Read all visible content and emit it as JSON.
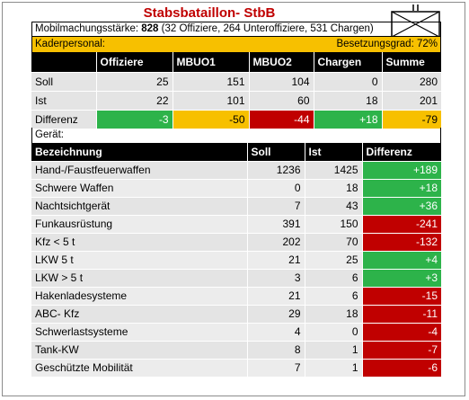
{
  "title": "Stabsbataillon- StbB",
  "symbol": {
    "icon": "military-unit-symbol-icon",
    "marks": "II"
  },
  "mobilmachung": {
    "label": "Mobilmachungsstärke:",
    "total": "828",
    "detail": "(32 Offiziere, 264 Unteroffiziere, 531 Chargen)"
  },
  "kader": {
    "label": "Kaderpersonal:",
    "besetzung_label": "Besetzungsgrad: 72%"
  },
  "personal": {
    "headers": [
      "",
      "Offiziere",
      "MBUO1",
      "MBUO2",
      "Chargen",
      "Summe"
    ],
    "rows": [
      {
        "label": "Soll",
        "values": [
          "25",
          "151",
          "104",
          "0",
          "280"
        ]
      },
      {
        "label": "Ist",
        "values": [
          "22",
          "101",
          "60",
          "18",
          "201"
        ]
      },
      {
        "label": "Differenz",
        "values": [
          "-3",
          "-50",
          "-44",
          "+18",
          "-79"
        ],
        "colors": [
          "green",
          "yellow",
          "red",
          "green",
          "yellow"
        ]
      }
    ]
  },
  "geraet_label": "Gerät:",
  "geraet": {
    "headers": [
      "Bezeichnung",
      "Soll",
      "Ist",
      "Differenz"
    ],
    "rows": [
      {
        "name": "Hand-/Faustfeuerwaffen",
        "soll": "1236",
        "ist": "1425",
        "diff": "+189",
        "color": "green"
      },
      {
        "name": "Schwere Waffen",
        "soll": "0",
        "ist": "18",
        "diff": "+18",
        "color": "green"
      },
      {
        "name": "Nachtsichtgerät",
        "soll": "7",
        "ist": "43",
        "diff": "+36",
        "color": "green"
      },
      {
        "name": "Funkausrüstung",
        "soll": "391",
        "ist": "150",
        "diff": "-241",
        "color": "red"
      },
      {
        "name": "Kfz < 5 t",
        "soll": "202",
        "ist": "70",
        "diff": "-132",
        "color": "red"
      },
      {
        "name": "LKW 5 t",
        "soll": "21",
        "ist": "25",
        "diff": "+4",
        "color": "green"
      },
      {
        "name": "LKW > 5 t",
        "soll": "3",
        "ist": "6",
        "diff": "+3",
        "color": "green"
      },
      {
        "name": "Hakenladesysteme",
        "soll": "21",
        "ist": "6",
        "diff": "-15",
        "color": "red"
      },
      {
        "name": "ABC- Kfz",
        "soll": "29",
        "ist": "18",
        "diff": "-11",
        "color": "red"
      },
      {
        "name": "Schwerlastsysteme",
        "soll": "4",
        "ist": "0",
        "diff": "-4",
        "color": "red"
      },
      {
        "name": "Tank-KW",
        "soll": "8",
        "ist": "1",
        "diff": "-7",
        "color": "red"
      },
      {
        "name": "Geschützte Mobilität",
        "soll": "7",
        "ist": "1",
        "diff": "-6",
        "color": "red"
      }
    ]
  }
}
